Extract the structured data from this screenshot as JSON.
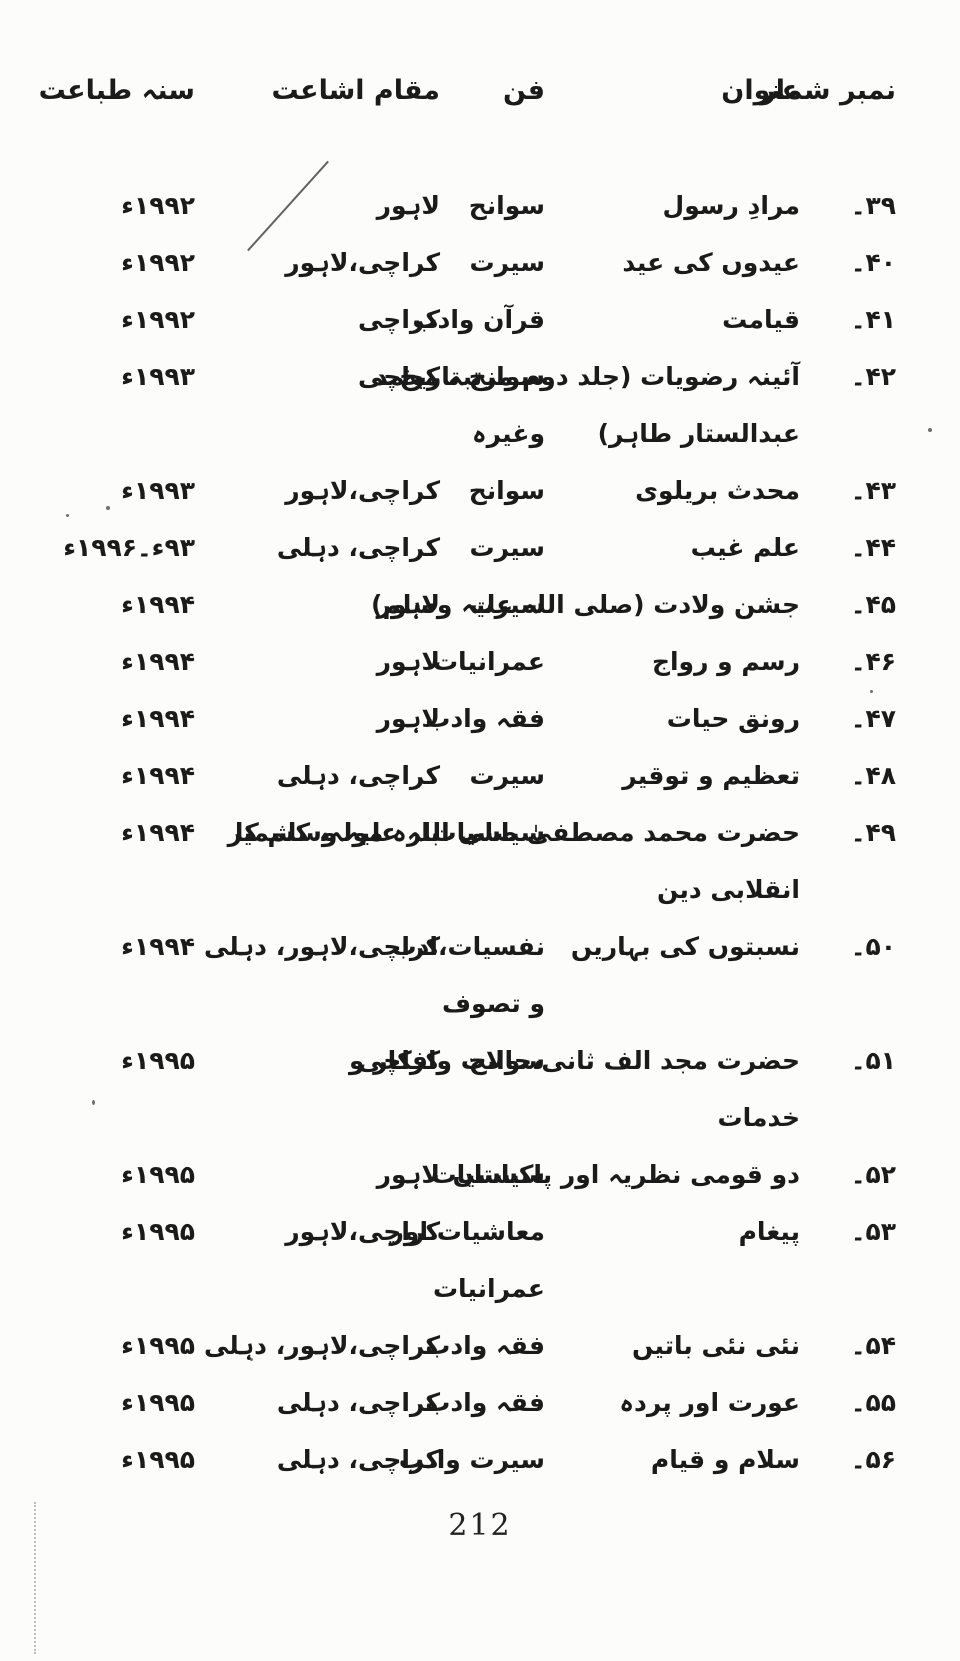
{
  "document": {
    "page_number": "212",
    "headers": {
      "serial": "نمبر شمار",
      "title": "عنوان",
      "genre": "فن",
      "place": "مقام اشاعت",
      "year": "سنہ طباعت"
    },
    "rows": [
      {
        "serial": "۳۹۔",
        "title_lines": [
          "مرادِ رسول"
        ],
        "genre_lines": [
          "سوانح"
        ],
        "place": "لاہور",
        "year": "۱۹۹۲ء"
      },
      {
        "serial": "۴۰۔",
        "title_lines": [
          "عیدوں کی عید"
        ],
        "genre_lines": [
          "سیرت"
        ],
        "place": "کراچی،لاہور",
        "year": "۱۹۹۲ء"
      },
      {
        "serial": "۴۱۔",
        "title_lines": [
          "قیامت"
        ],
        "genre_lines": [
          "قرآن وادب"
        ],
        "place": "کراچی",
        "year": "۱۹۹۲ء"
      },
      {
        "serial": "۴۲۔",
        "title_lines": [
          "آئینہ رضویات (جلد دوم مرتبہ محمد",
          "عبدالستار طاہر)"
        ],
        "genre_lines": [
          "سوانح تاریخ",
          "وغیرہ"
        ],
        "place": "کراچی",
        "year": "۱۹۹۳ء"
      },
      {
        "serial": "۴۳۔",
        "title_lines": [
          "محدث بریلوی"
        ],
        "genre_lines": [
          "سوانح"
        ],
        "place": "کراچی،لاہور",
        "year": "۱۹۹۳ء"
      },
      {
        "serial": "۴۴۔",
        "title_lines": [
          "علم غیب"
        ],
        "genre_lines": [
          "سیرت"
        ],
        "place": "کراچی، دہلی",
        "year": "۹۳ء۔۱۹۹۶ء"
      },
      {
        "serial": "۴۵۔",
        "title_lines": [
          "جشن ولادت (صلی اللہ علیہ وسلم)"
        ],
        "genre_lines": [
          "سیرت"
        ],
        "place": "لاہور",
        "year": "۱۹۹۴ء"
      },
      {
        "serial": "۴۶۔",
        "title_lines": [
          "رسم و رواج"
        ],
        "genre_lines": [
          "عمرانیات"
        ],
        "place": "لاہور",
        "year": "۱۹۹۴ء"
      },
      {
        "serial": "۴۷۔",
        "title_lines": [
          "رونق حیات"
        ],
        "genre_lines": [
          "فقہ وادب"
        ],
        "place": "لاہور",
        "year": "۱۹۹۴ء"
      },
      {
        "serial": "۴۸۔",
        "title_lines": [
          "تعظیم و توقیر"
        ],
        "genre_lines": [
          "سیرت"
        ],
        "place": "کراچی، دہلی",
        "year": "۱۹۹۴ء"
      },
      {
        "serial": "۴۹۔",
        "title_lines": [
          "حضرت محمد مصطفیٰ صلی اللہ علیہ وسلم کا",
          "انقلابی دین"
        ],
        "genre_lines": [
          "سیاسیات"
        ],
        "place": "بارہ مولہ، کشمیر",
        "year": "۱۹۹۴ء"
      },
      {
        "serial": "۵۰۔",
        "title_lines": [
          "نسبتوں کی بہاریں"
        ],
        "genre_lines": [
          "نفسیات،ادب",
          "و تصوف"
        ],
        "place": "کراچی،لاہور، دہلی",
        "year": "۱۹۹۴ء"
      },
      {
        "serial": "۵۱۔",
        "title_lines": [
          "حضرت مجد الف ثانی،حالات وافکار و",
          "خدمات"
        ],
        "genre_lines": [
          "سوانح"
        ],
        "place": "کراچی",
        "year": "۱۹۹۵ء"
      },
      {
        "serial": "۵۲۔",
        "title_lines": [
          "دو قومی نظریہ اور پاکستان"
        ],
        "genre_lines": [
          "سیاسیات"
        ],
        "place": "لاہور",
        "year": "۱۹۹۵ء"
      },
      {
        "serial": "۵۳۔",
        "title_lines": [
          "پیغام"
        ],
        "genre_lines": [
          "معاشیات اور",
          "عمرانیات"
        ],
        "place": "کراچی،لاہور",
        "year": "۱۹۹۵ء"
      },
      {
        "serial": "۵۴۔",
        "title_lines": [
          "نئی نئی باتیں"
        ],
        "genre_lines": [
          "فقہ وادب"
        ],
        "place": "کراچی،لاہور، دہلی",
        "year": "۱۹۹۵ء"
      },
      {
        "serial": "۵۵۔",
        "title_lines": [
          "عورت اور پردہ"
        ],
        "genre_lines": [
          "فقہ وادب"
        ],
        "place": "کراچی، دہلی",
        "year": "۱۹۹۵ء"
      },
      {
        "serial": "۵۶۔",
        "title_lines": [
          "سلام و قیام"
        ],
        "genre_lines": [
          "سیرت وادب"
        ],
        "place": "کراچی، دہلی",
        "year": "۱۹۹۵ء"
      }
    ]
  }
}
